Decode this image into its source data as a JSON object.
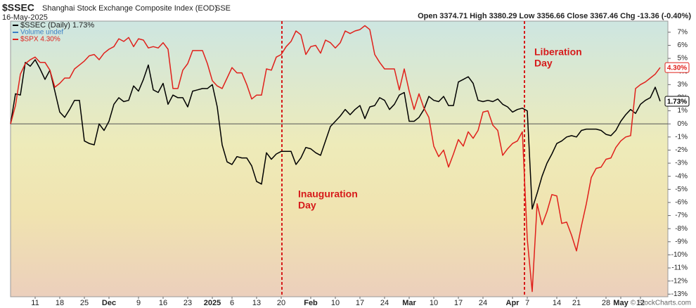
{
  "header": {
    "symbol": "$SSEC",
    "name": "Shanghai Stock Exchange Composite Index (EOD)",
    "exchange": "SSE",
    "date": "16-May-2025",
    "quote": "Open 3374.71  High 3380.29  Low 3356.66  Close 3367.46  Chg -13.36 (-0.40%)",
    "credit": "© StockCharts.com"
  },
  "chart_data": {
    "type": "line",
    "categories": [
      null,
      null,
      null,
      null,
      null,
      "11",
      null,
      null,
      null,
      null,
      "18",
      null,
      null,
      null,
      null,
      "25",
      null,
      null,
      null,
      null,
      "Dec",
      null,
      null,
      null,
      null,
      null,
      "9",
      null,
      null,
      null,
      null,
      "16",
      null,
      null,
      null,
      null,
      "23",
      null,
      null,
      null,
      null,
      "2025",
      null,
      null,
      null,
      "6",
      null,
      null,
      null,
      null,
      "13",
      null,
      null,
      null,
      null,
      "20",
      null,
      null,
      null,
      null,
      null,
      "Feb",
      null,
      null,
      null,
      null,
      "10",
      null,
      null,
      null,
      null,
      "17",
      null,
      null,
      null,
      null,
      "24",
      null,
      null,
      null,
      null,
      "Mar",
      null,
      null,
      null,
      null,
      "10",
      null,
      null,
      null,
      null,
      "17",
      null,
      null,
      null,
      null,
      "24",
      null,
      null,
      null,
      null,
      null,
      "Apr",
      null,
      null,
      "7",
      null,
      null,
      null,
      null,
      null,
      "14",
      null,
      null,
      null,
      "21",
      null,
      null,
      null,
      null,
      null,
      "28",
      null,
      null,
      "May",
      null,
      null,
      null,
      "12",
      null,
      null,
      null,
      null
    ],
    "series": [
      {
        "name": "$SSEC (Daily) 1.73%",
        "color": "#000000",
        "end_label": "1.73%",
        "values": [
          0,
          2.3,
          2.2,
          4.7,
          4.4,
          4.9,
          4.2,
          3.4,
          4.1,
          2.5,
          0.9,
          0.5,
          1.1,
          1.8,
          1.8,
          -1.3,
          -1.5,
          -1.6,
          0,
          -0.5,
          0.2,
          1.5,
          2.0,
          1.7,
          1.8,
          2.9,
          2.5,
          3.4,
          4.5,
          2.6,
          2.4,
          3.1,
          1.5,
          2.2,
          2.0,
          2.0,
          1.3,
          2.5,
          2.6,
          2.7,
          2.7,
          3.0,
          1.3,
          -1.6,
          -2.9,
          -3.1,
          -2.5,
          -2.6,
          -2.6,
          -3.2,
          -4.4,
          -4.6,
          -2.2,
          -2.7,
          -2.3,
          -2.1,
          -2.1,
          -2.1,
          -3.1,
          -2.6,
          -1.8,
          -1.9,
          -2.2,
          -2.4,
          -1.3,
          -0.2,
          0.2,
          0.6,
          1.1,
          0.7,
          1.1,
          1.4,
          0.4,
          1.3,
          1.4,
          2.0,
          1.8,
          1.1,
          1.5,
          2.2,
          2.4,
          0.2,
          0.2,
          0.5,
          1.1,
          2.1,
          1.8,
          1.7,
          2.1,
          1.4,
          1.4,
          3.2,
          3.4,
          3.6,
          3.1,
          1.8,
          1.7,
          1.8,
          1.7,
          1.9,
          1.5,
          1.3,
          0.9,
          1.1,
          1.2,
          1.0,
          -6.5,
          -5.3,
          -4.0,
          -3.0,
          -2.3,
          -1.5,
          -1.3,
          -1.0,
          -0.9,
          -1.0,
          -0.5,
          -0.4,
          -0.4,
          -0.4,
          -0.5,
          -0.8,
          -0.9,
          -0.5,
          0.2,
          0.7,
          1.1,
          0.8,
          1.5,
          1.8,
          2.0,
          2.8,
          1.73
        ]
      },
      {
        "name": "$SPX 4.30%",
        "color": "#e0201b",
        "end_label": "4.30%",
        "values": [
          0,
          1.4,
          3.8,
          4.6,
          4.9,
          5.1,
          4.7,
          4.7,
          4.1,
          2.8,
          3.1,
          3.5,
          3.5,
          4.2,
          4.5,
          4.8,
          5.2,
          5.3,
          4.9,
          5.4,
          5.7,
          5.9,
          6.5,
          6.3,
          6.6,
          5.9,
          6.5,
          6.4,
          5.8,
          5.9,
          5.8,
          6.2,
          5.7,
          2.7,
          2.7,
          4.1,
          4.6,
          5.6,
          5.6,
          5.6,
          4.6,
          3.3,
          2.9,
          2.7,
          3.5,
          4.3,
          3.9,
          3.9,
          3.0,
          1.9,
          2.2,
          2.2,
          4.2,
          4.1,
          5.1,
          5.3,
          5.9,
          6.3,
          7.1,
          6.8,
          5.3,
          5.9,
          6.0,
          5.4,
          6.4,
          6.2,
          5.8,
          6.2,
          7.1,
          6.9,
          7.1,
          7.2,
          7.5,
          7.2,
          5.3,
          4.7,
          4.2,
          4.2,
          4.2,
          2.6,
          4.2,
          2.5,
          1.1,
          2.3,
          1.2,
          0.5,
          -1.7,
          -2.5,
          -2.0,
          -3.3,
          -2.3,
          -1.2,
          -1.7,
          -0.6,
          -1.1,
          -0.5,
          0.9,
          1.0,
          -0.1,
          -0.5,
          -2.4,
          -1.9,
          -1.5,
          -1.3,
          -0.6,
          -8.8,
          -12.8,
          -6.1,
          -7.7,
          -6.7,
          -5.4,
          -5.5,
          -7.6,
          -7.5,
          -8.5,
          -9.7,
          -7.8,
          -6.1,
          -4.1,
          -3.4,
          -3.3,
          -2.7,
          -2.6,
          -1.8,
          -1.3,
          -1.0,
          -0.9,
          2.7,
          3.0,
          3.2,
          3.5,
          3.8,
          4.3
        ]
      }
    ],
    "legend_extra": "Volume undef",
    "legend": "upper left",
    "ylim": [
      -13.2,
      7.85
    ],
    "yticks": [
      {
        "value": 7,
        "label": "7%"
      },
      {
        "value": 6,
        "label": "6%"
      },
      {
        "value": 5,
        "label": "5%"
      },
      {
        "value": 4,
        "label": "4%"
      },
      {
        "value": 3,
        "label": "3%"
      },
      {
        "value": 2,
        "label": "2%"
      },
      {
        "value": 1,
        "label": "1%"
      },
      {
        "value": 0,
        "label": "0%"
      },
      {
        "value": -1,
        "label": "-1%"
      },
      {
        "value": -2,
        "label": "-2%"
      },
      {
        "value": -3,
        "label": "-3%"
      },
      {
        "value": -4,
        "label": "-4%"
      },
      {
        "value": -5,
        "label": "-5%"
      },
      {
        "value": -6,
        "label": "-6%"
      },
      {
        "value": -7,
        "label": "-7%"
      },
      {
        "value": -8,
        "label": "-8%"
      },
      {
        "value": -9,
        "label": "-9%"
      },
      {
        "value": -10,
        "label": "-10%"
      },
      {
        "value": -11,
        "label": "-11%"
      },
      {
        "value": -12,
        "label": "-12%"
      },
      {
        "value": -13,
        "label": "-13%"
      }
    ],
    "annotations": [
      [
        "Inauguration",
        "Day"
      ],
      [
        "Liberation",
        "Day"
      ]
    ]
  }
}
